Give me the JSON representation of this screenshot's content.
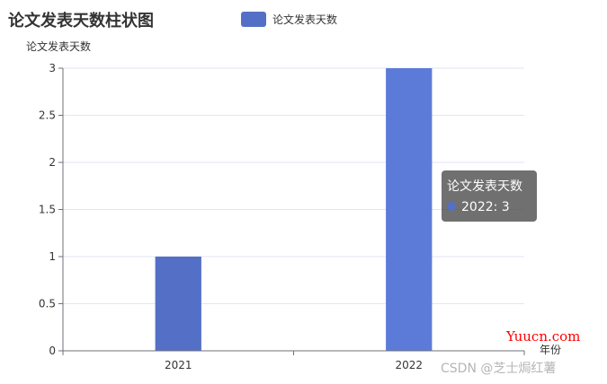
{
  "chart_data": {
    "type": "bar",
    "title": "论文发表天数柱状图",
    "xlabel": "年份",
    "ylabel": "论文发表天数",
    "categories": [
      "2021",
      "2022"
    ],
    "series": [
      {
        "name": "论文发表天数",
        "values": [
          1,
          3
        ]
      }
    ],
    "ylim": [
      0,
      3
    ],
    "yticks": [
      "0",
      "0.5",
      "1",
      "1.5",
      "2",
      "2.5",
      "3"
    ],
    "grid": true,
    "legend_position": "top-center"
  },
  "tooltip": {
    "title": "论文发表天数",
    "value_text": "2022: 3"
  },
  "watermarks": {
    "yuucn": "Yuucn.com",
    "csdn": "CSDN @芝士焗红薯"
  },
  "colors": {
    "bar": "#5470c6",
    "bar_highlight": "#5c7bd9",
    "grid": "#e0e6f1",
    "axis": "#6e7079"
  }
}
